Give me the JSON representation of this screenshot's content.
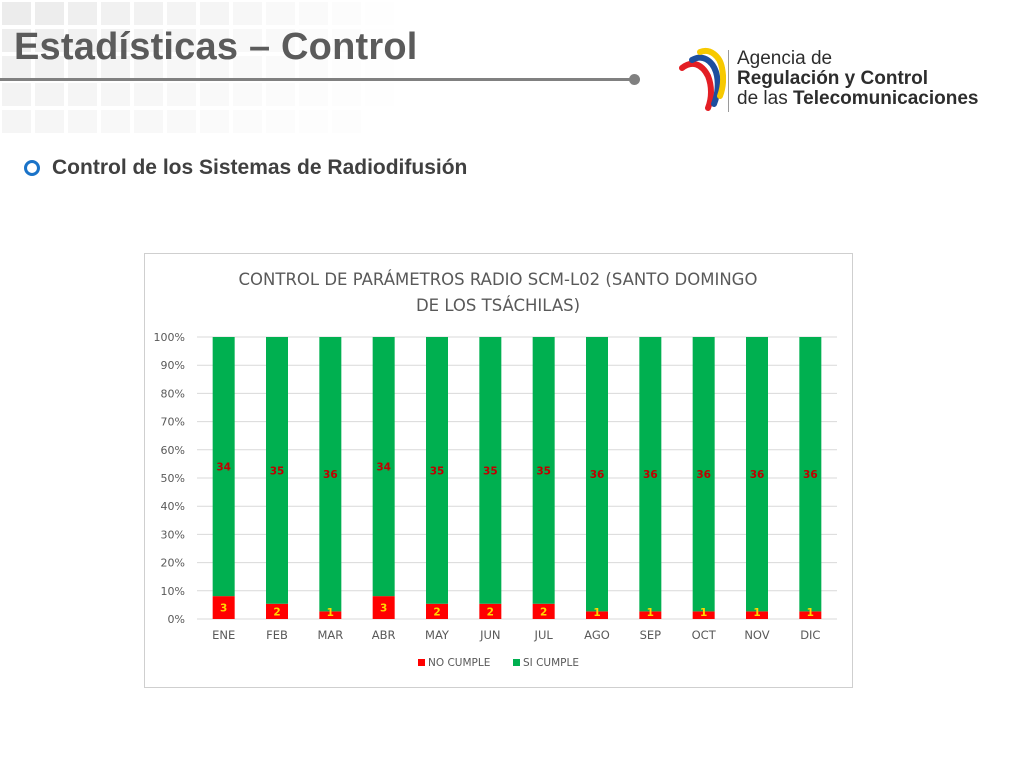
{
  "slide": {
    "title": "Estadísticas – Control",
    "bullet": "Control de los Sistemas de Radiodifusión"
  },
  "logo": {
    "line1": "Agencia de",
    "line2": "Regulación y Control",
    "line3_prefix": "de las",
    "line3_bold": "Telecomunicaciones"
  },
  "colors": {
    "no_cumple": "#ff0000",
    "si_cumple": "#00b050",
    "label_text": "#c00000",
    "title_gray": "#5b5b5b",
    "bullet_blue": "#1a73c8"
  },
  "chart_data": {
    "type": "bar",
    "stacked": "percent",
    "title_lines": [
      "CONTROL DE PARÁMETROS RADIO SCM-L02 (SANTO DOMINGO",
      "DE LOS TSÁCHILAS)"
    ],
    "categories": [
      "ENE",
      "FEB",
      "MAR",
      "ABR",
      "MAY",
      "JUN",
      "JUL",
      "AGO",
      "SEP",
      "OCT",
      "NOV",
      "DIC"
    ],
    "series": [
      {
        "name": "NO CUMPLE",
        "values": [
          3,
          2,
          1,
          3,
          2,
          2,
          2,
          1,
          1,
          1,
          1,
          1
        ]
      },
      {
        "name": "SI CUMPLE",
        "values": [
          34,
          35,
          36,
          34,
          35,
          35,
          35,
          36,
          36,
          36,
          36,
          36
        ]
      }
    ],
    "y_ticks": [
      "0%",
      "10%",
      "20%",
      "30%",
      "40%",
      "50%",
      "60%",
      "70%",
      "80%",
      "90%",
      "100%"
    ],
    "ylim": [
      0,
      100
    ],
    "grid": true,
    "legend_position": "bottom"
  }
}
